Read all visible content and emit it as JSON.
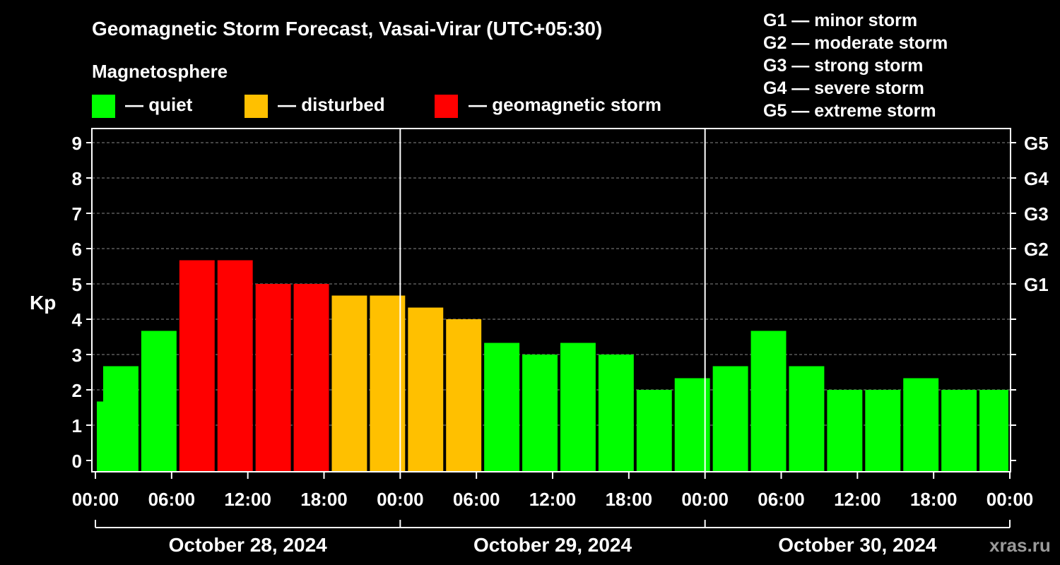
{
  "chart_data": {
    "type": "bar",
    "title": "Geomagnetic Storm Forecast, Vasai-Virar (UTC+05:30)",
    "legend_title": "Magnetosphere",
    "legend": [
      {
        "label": "— quiet",
        "color": "#00ff00"
      },
      {
        "label": "— disturbed",
        "color": "#ffc000"
      },
      {
        "label": "— geomagnetic storm",
        "color": "#ff0000"
      }
    ],
    "storm_scale": [
      "G1 — minor storm",
      "G2 — moderate storm",
      "G3 — strong storm",
      "G4 — severe storm",
      "G5 — extreme storm"
    ],
    "ylabel": "Kp",
    "ylim": [
      0,
      9
    ],
    "y_ticks": [
      "0",
      "1",
      "2",
      "3",
      "4",
      "5",
      "6",
      "7",
      "8",
      "9"
    ],
    "right_ticks": [
      {
        "value": 5,
        "label": "G1"
      },
      {
        "value": 6,
        "label": "G2"
      },
      {
        "value": 7,
        "label": "G3"
      },
      {
        "value": 8,
        "label": "G4"
      },
      {
        "value": 9,
        "label": "G5"
      }
    ],
    "x_start": "2024-10-28 00:00",
    "x_end": "2024-10-31 00:00",
    "x_tick_labels": [
      "00:00",
      "06:00",
      "12:00",
      "18:00",
      "00:00",
      "06:00",
      "12:00",
      "18:00",
      "00:00",
      "06:00",
      "12:00",
      "18:00",
      "00:00"
    ],
    "days": [
      "October 28, 2024",
      "October 29, 2024",
      "October 30, 2024"
    ],
    "grid": true,
    "series": [
      {
        "times": [
          "2024-10-28 00:00",
          "2024-10-28 02:00",
          "2024-10-28 05:00",
          "2024-10-28 08:00",
          "2024-10-28 11:00",
          "2024-10-28 14:00",
          "2024-10-28 17:00",
          "2024-10-28 20:00",
          "2024-10-28 23:00",
          "2024-10-29 02:00",
          "2024-10-29 05:00",
          "2024-10-29 08:00",
          "2024-10-29 11:00",
          "2024-10-29 14:00",
          "2024-10-29 17:00",
          "2024-10-29 20:00",
          "2024-10-29 23:00",
          "2024-10-30 02:00",
          "2024-10-30 05:00",
          "2024-10-30 08:00",
          "2024-10-30 11:00",
          "2024-10-30 14:00",
          "2024-10-30 17:00",
          "2024-10-30 20:00",
          "2024-10-30 23:00"
        ],
        "values": [
          1.67,
          2.67,
          3.67,
          5.67,
          5.67,
          5.0,
          5.0,
          4.67,
          4.67,
          4.33,
          4.0,
          3.33,
          3.0,
          3.33,
          3.0,
          2.0,
          2.33,
          2.67,
          3.67,
          2.67,
          2.0,
          2.0,
          2.33,
          2.0,
          2.0
        ],
        "levels": [
          "quiet",
          "quiet",
          "quiet",
          "storm",
          "storm",
          "storm",
          "storm",
          "disturbed",
          "disturbed",
          "disturbed",
          "disturbed",
          "quiet",
          "quiet",
          "quiet",
          "quiet",
          "quiet",
          "quiet",
          "quiet",
          "quiet",
          "quiet",
          "quiet",
          "quiet",
          "quiet",
          "quiet",
          "quiet"
        ]
      }
    ],
    "colors": {
      "quiet": "#00ff00",
      "disturbed": "#ffc000",
      "storm": "#ff0000",
      "grid": "#888888",
      "axis": "#ffffff"
    }
  },
  "watermark": "xras.ru"
}
